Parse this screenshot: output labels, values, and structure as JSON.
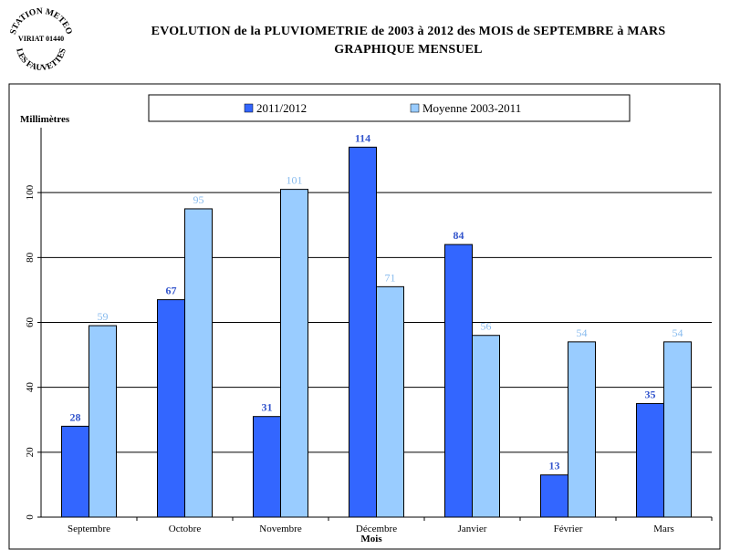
{
  "stamp": {
    "line_top": "STATION METEO",
    "line_mid": "VIRIAT 01440",
    "line_bottom": "LES FAUVETTES"
  },
  "header": {
    "title_line1": "EVOLUTION de la PLUVIOMETRIE de 2003 à 2012 des MOIS de SEPTEMBRE à MARS",
    "title_line2": "GRAPHIQUE MENSUEL"
  },
  "colors": {
    "series1": "#3366ff",
    "series2": "#99ccff",
    "label1": "#3355cc",
    "label2": "#88bbee"
  },
  "chart_data": {
    "type": "bar",
    "title": "EVOLUTION de la PLUVIOMETRIE de 2003 à 2012 des MOIS de SEPTEMBRE à MARS",
    "subtitle": "GRAPHIQUE MENSUEL",
    "xlabel": "Mois",
    "ylabel": "Millimètres",
    "ylim": [
      0,
      120
    ],
    "yticks": [
      0,
      20,
      40,
      60,
      80,
      100
    ],
    "grid": true,
    "legend_position": "top",
    "categories": [
      "Septembre",
      "Octobre",
      "Novembre",
      "Décembre",
      "Janvier",
      "Février",
      "Mars"
    ],
    "series": [
      {
        "name": "2011/2012",
        "values": [
          28,
          67,
          31,
          114,
          84,
          13,
          35
        ]
      },
      {
        "name": "Moyenne 2003-2011",
        "values": [
          59,
          95,
          101,
          71,
          56,
          54,
          54
        ]
      }
    ]
  }
}
